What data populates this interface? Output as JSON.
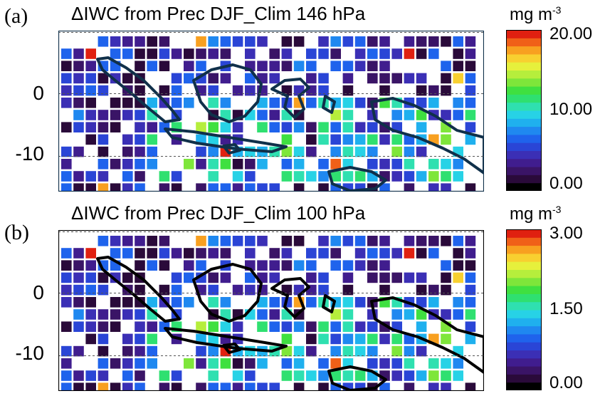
{
  "chart_data": [
    {
      "type": "heatmap",
      "panel_label": "(a)",
      "title": "ΔIWC from Prec DJF_Clim 146 hPa",
      "y_ticks": [
        "0",
        "-10"
      ],
      "colorbar": {
        "unit": "mg m",
        "unit_exp": "-3",
        "min": 0.0,
        "max": 20.0,
        "tick_labels": [
          "20.00",
          "10.00",
          "0.00"
        ]
      },
      "coastline_color": "#10304a"
    },
    {
      "type": "heatmap",
      "panel_label": "(b)",
      "title": "ΔIWC from Prec DJF_Clim 100 hPa",
      "y_ticks": [
        "0",
        "-10"
      ],
      "colorbar": {
        "unit": "mg m",
        "unit_exp": "-3",
        "min": 0.0,
        "max": 3.0,
        "tick_labels": [
          "3.00",
          "1.50",
          "0.00"
        ]
      },
      "coastline_color": "#000000"
    }
  ],
  "colormap": [
    "#000000",
    "#2a0a3a",
    "#3a1466",
    "#401d8e",
    "#3b2fb5",
    "#2a45d6",
    "#1f63ec",
    "#1f88f0",
    "#1fb0ee",
    "#27d2e6",
    "#2fe0b0",
    "#2fe070",
    "#3fe040",
    "#7ee63a",
    "#b6ee3c",
    "#e6f03c",
    "#f8d030",
    "#f8a020",
    "#f06018",
    "#e02010"
  ]
}
